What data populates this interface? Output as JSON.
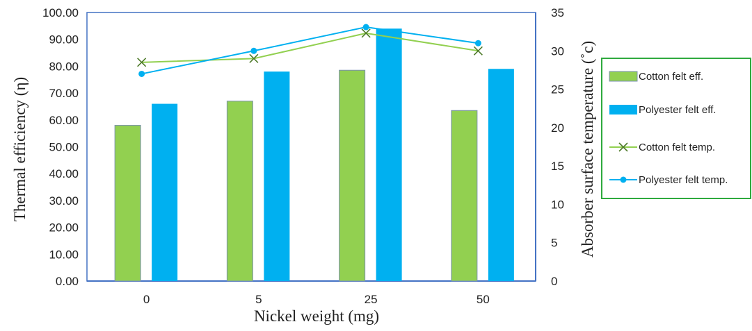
{
  "chart_data": {
    "type": "bar",
    "categories": [
      "0",
      "5",
      "25",
      "50"
    ],
    "xlabel": "Nickel weight (mg)",
    "ylabel": "Thermal efficiency (η)",
    "y2label": "Absorber surface temperature (˚c)",
    "ylim": [
      0,
      100
    ],
    "y2lim": [
      0,
      35
    ],
    "yticks": [
      "0.00",
      "10.00",
      "20.00",
      "30.00",
      "40.00",
      "50.00",
      "60.00",
      "70.00",
      "80.00",
      "90.00",
      "100.00"
    ],
    "y2ticks": [
      "0",
      "5",
      "10",
      "15",
      "20",
      "25",
      "30",
      "35"
    ],
    "grid": false,
    "legend_position": "right",
    "series": [
      {
        "name": "Cotton felt eff.",
        "kind": "bar",
        "axis": "left",
        "color": "#92D050",
        "values": [
          58,
          67,
          78.5,
          63.5
        ]
      },
      {
        "name": "Polyester felt eff.",
        "kind": "bar",
        "axis": "left",
        "color": "#00B0F0",
        "values": [
          66,
          78,
          94,
          79
        ]
      },
      {
        "name": "Cotton felt temp.",
        "kind": "line",
        "marker": "x",
        "axis": "right",
        "color": "#92D050",
        "values": [
          28.5,
          29,
          32.3,
          30
        ]
      },
      {
        "name": "Polyester felt temp.",
        "kind": "line",
        "marker": "circle",
        "axis": "right",
        "color": "#00B0F0",
        "values": [
          27,
          30,
          33.1,
          31
        ]
      }
    ]
  },
  "colors": {
    "axis": "#4472C4",
    "legend_border": "#2EAA3E"
  }
}
